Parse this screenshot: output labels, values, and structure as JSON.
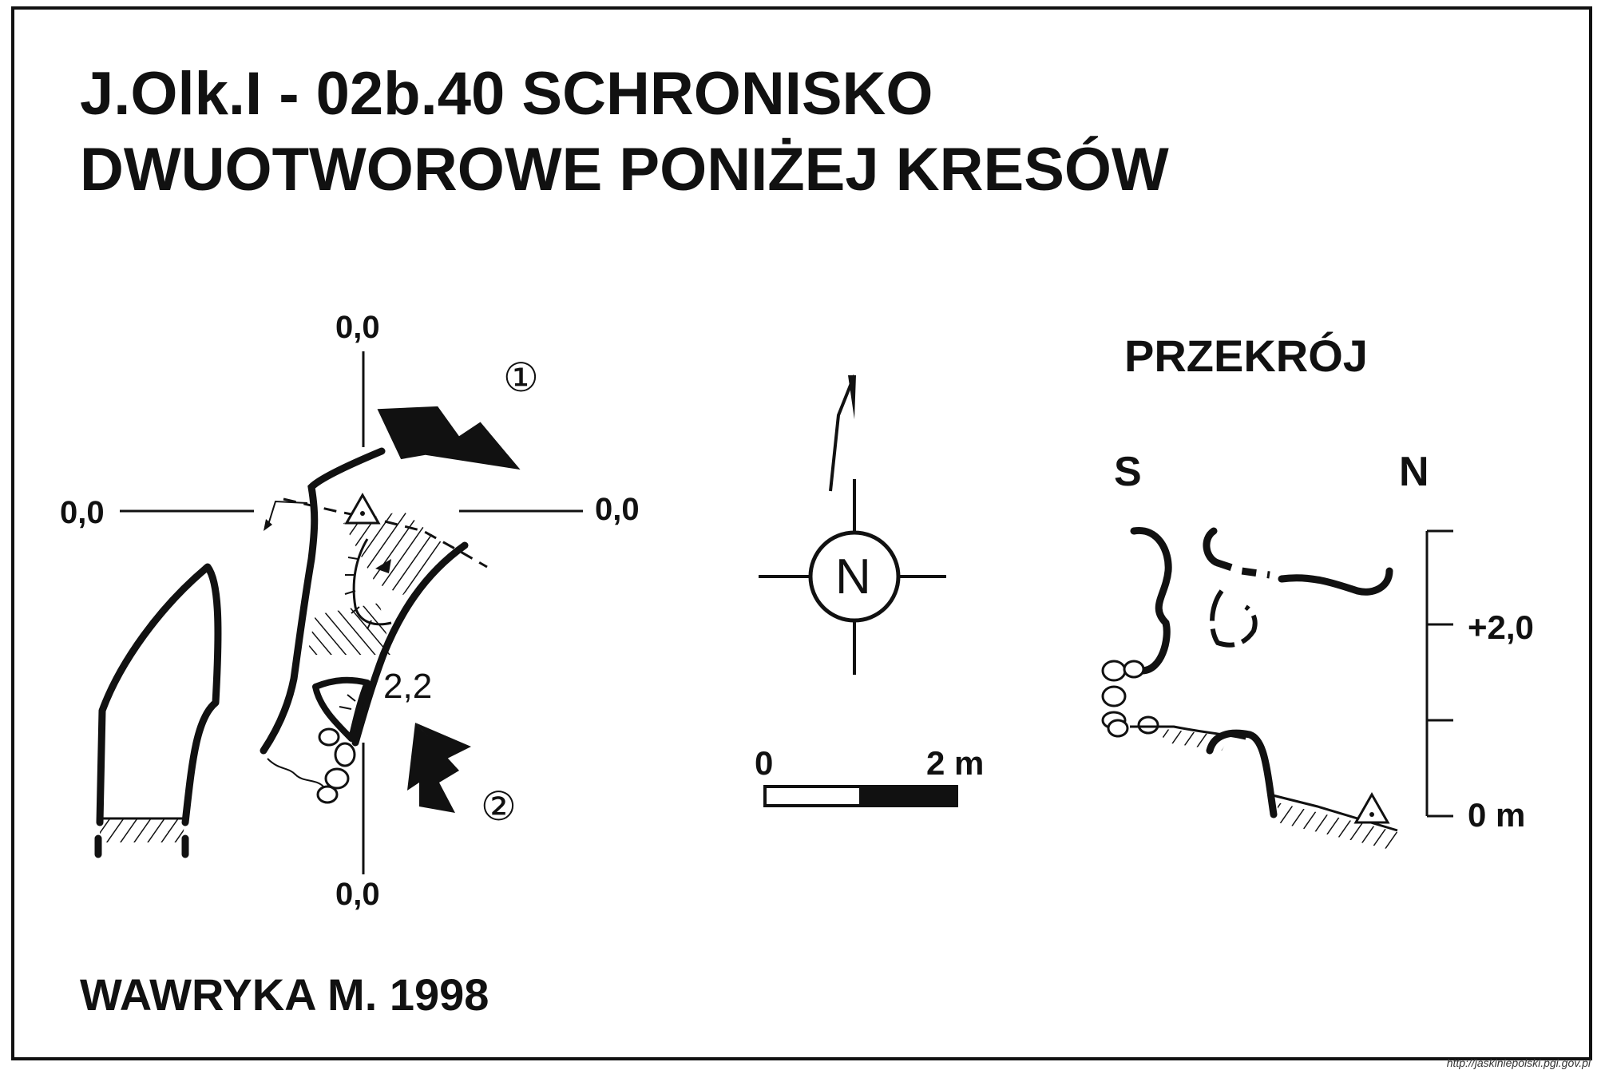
{
  "title": {
    "line1": "J.Olk.I - 02b.40  SCHRONISKO",
    "line2": "DWUOTWOROWE PONIŻEJ KRESÓW"
  },
  "plan": {
    "ref_top": "0,0",
    "ref_left": "0,0",
    "ref_right": "0,0",
    "ref_bottom": "0,0",
    "entrance_1": "①",
    "entrance_2": "②",
    "height_mark": "2,2"
  },
  "compass": {
    "north_letter": "N"
  },
  "scale_bar": {
    "start": "0",
    "end": "2 m"
  },
  "section": {
    "heading": "PRZEKRÓJ",
    "south": "S",
    "north": "N",
    "level_top": "+2,0",
    "level_bottom": "0 m"
  },
  "author": "WAWRYKA M. 1998",
  "source": "http://jaskiniepolski.pgi.gov.pl"
}
